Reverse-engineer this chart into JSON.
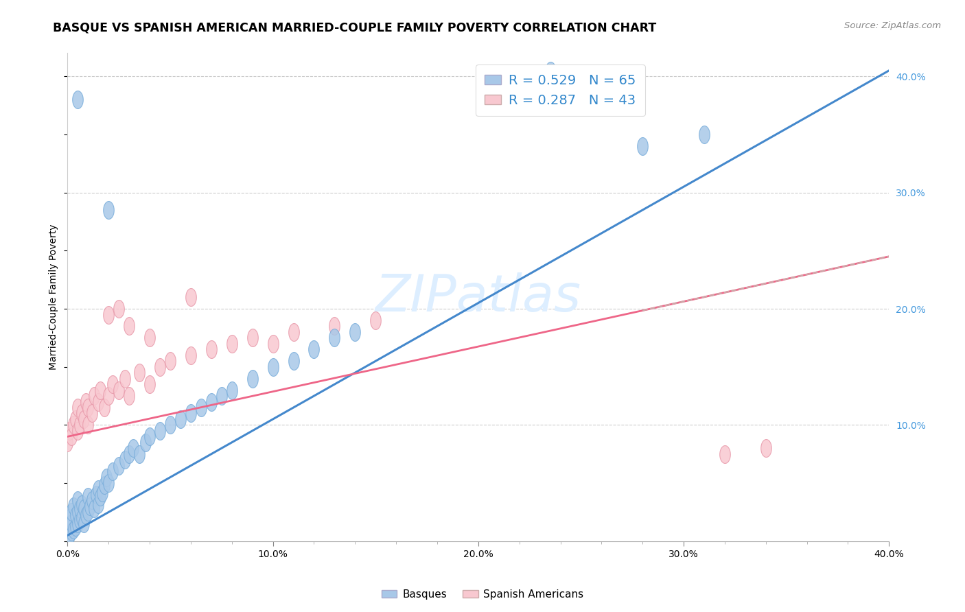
{
  "title": "BASQUE VS SPANISH AMERICAN MARRIED-COUPLE FAMILY POVERTY CORRELATION CHART",
  "source": "Source: ZipAtlas.com",
  "ylabel": "Married-Couple Family Poverty",
  "xlim": [
    0.0,
    0.4
  ],
  "ylim": [
    0.0,
    0.42
  ],
  "xtick_labels": [
    "0.0%",
    "",
    "",
    "",
    "",
    "10.0%",
    "",
    "",
    "",
    "",
    "20.0%",
    "",
    "",
    "",
    "",
    "30.0%",
    "",
    "",
    "",
    "",
    "40.0%"
  ],
  "xtick_vals": [
    0.0,
    0.02,
    0.04,
    0.06,
    0.08,
    0.1,
    0.12,
    0.14,
    0.16,
    0.18,
    0.2,
    0.22,
    0.24,
    0.26,
    0.28,
    0.3,
    0.32,
    0.34,
    0.36,
    0.38,
    0.4
  ],
  "ytick_labels": [
    "10.0%",
    "20.0%",
    "30.0%",
    "40.0%"
  ],
  "ytick_vals": [
    0.1,
    0.2,
    0.3,
    0.4
  ],
  "basque_color": "#a8c8e8",
  "basque_edge": "#7aaedb",
  "spanish_color": "#f8c8d0",
  "spanish_edge": "#e899aa",
  "line_blue_color": "#4488cc",
  "line_pink_color": "#ee6688",
  "line_dash_color": "#ccaaaa",
  "R_basque": 0.529,
  "N_basque": 65,
  "R_spanish": 0.287,
  "N_spanish": 43,
  "legend_blue_fill": "#a8c8e8",
  "legend_pink_fill": "#f8c8d0",
  "watermark": "ZIPatlas",
  "grid_color": "#cccccc",
  "grid_linestyle": "--"
}
